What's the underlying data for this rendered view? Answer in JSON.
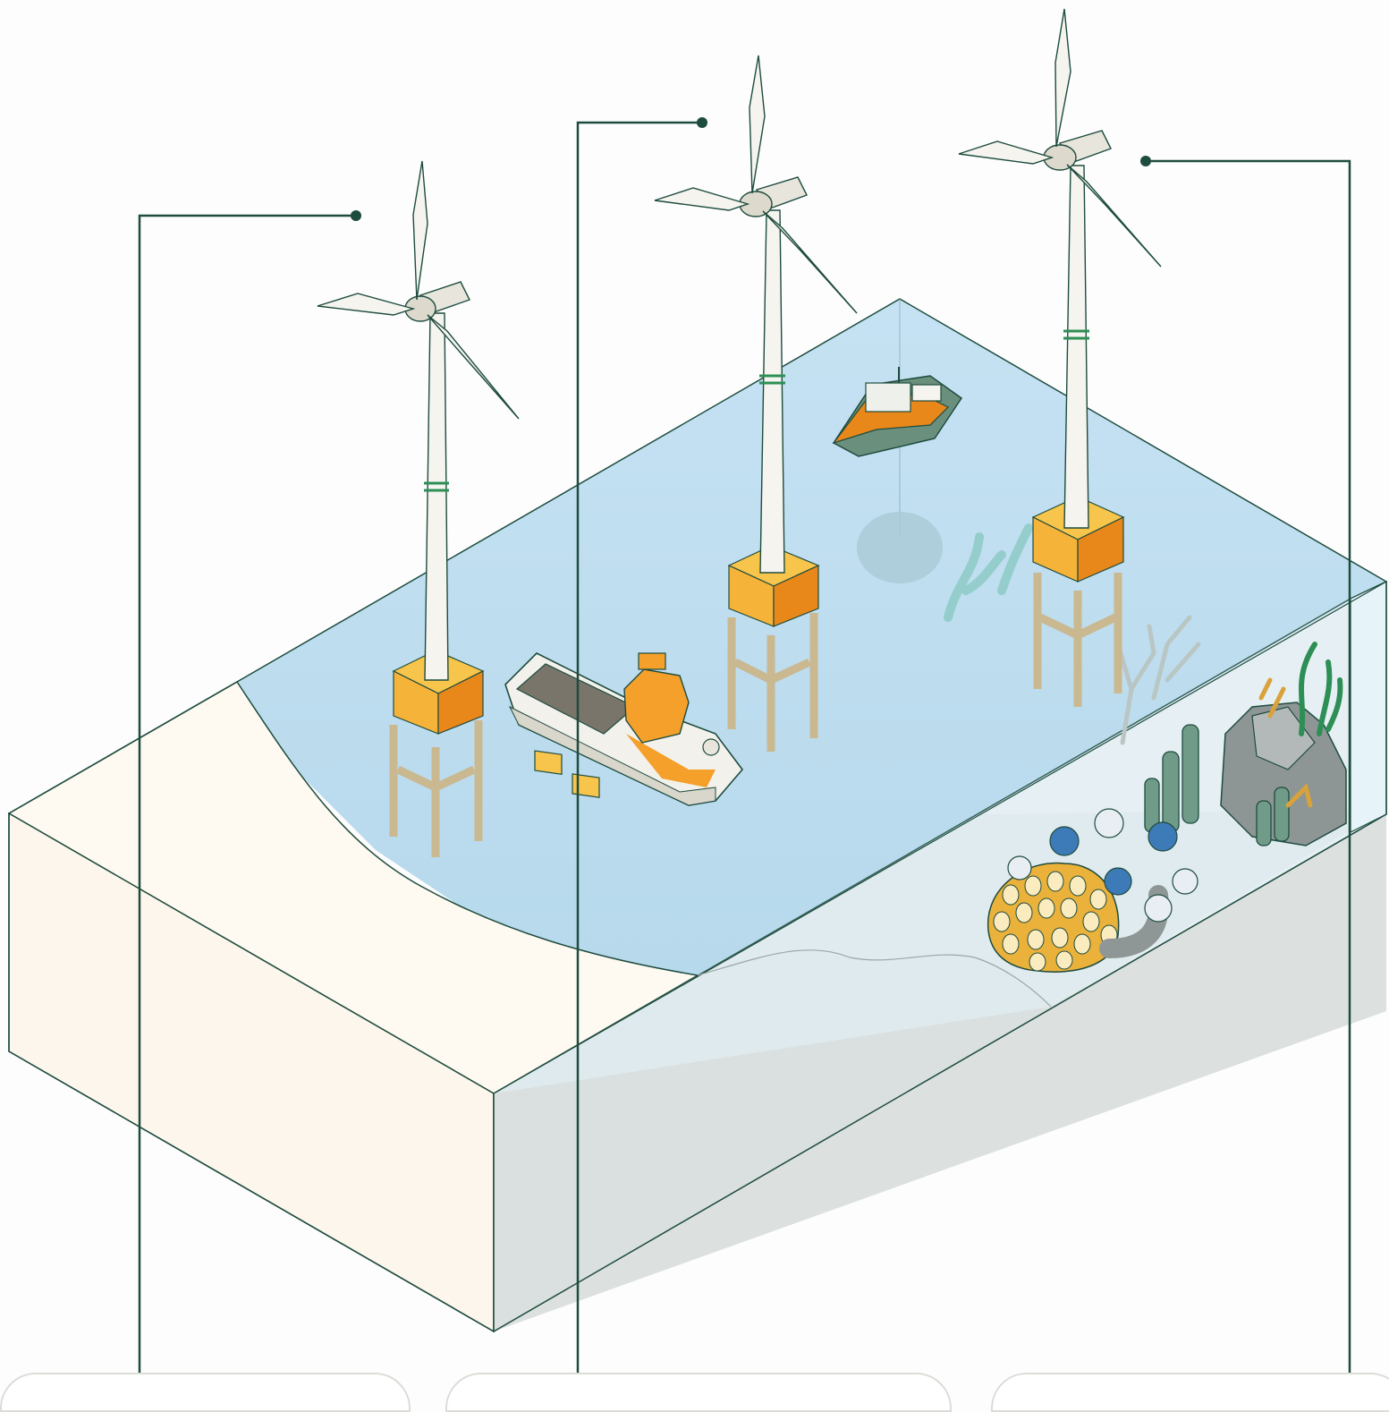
{
  "scene": {
    "description": "",
    "elements": {
      "turbines": [
        "wind-turbine-1",
        "wind-turbine-2",
        "wind-turbine-3"
      ],
      "vessels": [
        "service-vessel",
        "crew-boat"
      ],
      "habitats": [
        "coral-reef",
        "rocky-reef"
      ]
    }
  },
  "colors": {
    "water": "#c3e0f1",
    "sand": "#fef9f1",
    "seabed": "#d3d9d8",
    "outline": "#1e4c3e",
    "foundation": "#f5b33a",
    "foundation_dark": "#e8871a",
    "tower": "#f5f4ef",
    "callout": "#1e4c3e"
  },
  "callouts": [
    {
      "id": "callout-1",
      "target": "wind-turbine-1"
    },
    {
      "id": "callout-2",
      "target": "wind-turbine-2"
    },
    {
      "id": "callout-3",
      "target": "wind-turbine-3"
    }
  ],
  "info_cards": [
    {
      "id": "card-1",
      "label": ""
    },
    {
      "id": "card-2",
      "label": ""
    },
    {
      "id": "card-3",
      "label": ""
    }
  ]
}
